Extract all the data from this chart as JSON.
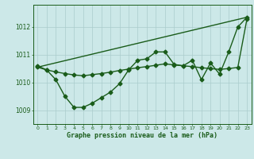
{
  "background_color": "#cce8e8",
  "grid_color": "#aacccc",
  "line_color": "#1a5c1a",
  "xlabel": "Graphe pression niveau de la mer (hPa)",
  "xlim": [
    -0.5,
    23.5
  ],
  "ylim": [
    1008.5,
    1012.8
  ],
  "yticks": [
    1009,
    1010,
    1011,
    1012
  ],
  "xticks": [
    0,
    1,
    2,
    3,
    4,
    5,
    6,
    7,
    8,
    9,
    10,
    11,
    12,
    13,
    14,
    15,
    16,
    17,
    18,
    19,
    20,
    21,
    22,
    23
  ],
  "series_main_x": [
    0,
    1,
    2,
    3,
    4,
    5,
    6,
    7,
    8,
    9,
    10,
    11,
    12,
    13,
    14,
    15,
    16,
    17,
    18,
    19,
    20,
    21,
    22,
    23
  ],
  "series_main_y": [
    1010.6,
    1010.45,
    1010.1,
    1009.5,
    1009.1,
    1009.1,
    1009.25,
    1009.45,
    1009.65,
    1009.95,
    1010.45,
    1010.8,
    1010.85,
    1011.1,
    1011.1,
    1010.65,
    1010.6,
    1010.8,
    1010.1,
    1010.7,
    1010.3,
    1011.1,
    1012.0,
    1012.35
  ],
  "series_smooth_x": [
    0,
    1,
    2,
    3,
    4,
    5,
    6,
    7,
    8,
    9,
    10,
    11,
    12,
    13,
    14,
    15,
    16,
    17,
    18,
    19,
    20,
    21,
    22,
    23
  ],
  "series_smooth_y": [
    1010.55,
    1010.45,
    1010.38,
    1010.32,
    1010.27,
    1010.24,
    1010.28,
    1010.32,
    1010.37,
    1010.43,
    1010.48,
    1010.53,
    1010.57,
    1010.62,
    1010.67,
    1010.63,
    1010.6,
    1010.57,
    1010.53,
    1010.5,
    1010.47,
    1010.5,
    1010.54,
    1012.28
  ],
  "trend_x": [
    0,
    23
  ],
  "trend_y": [
    1010.55,
    1012.35
  ],
  "marker": "D",
  "markersize": 2.5,
  "linewidth": 1.0
}
